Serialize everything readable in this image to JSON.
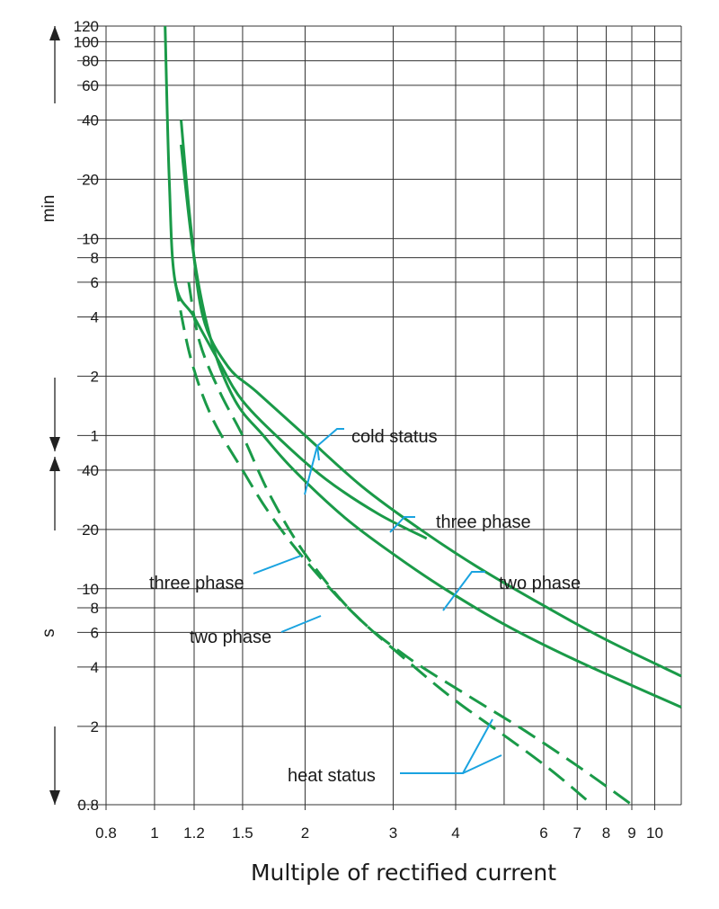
{
  "chart_data": {
    "type": "line",
    "title": "",
    "xlabel": "Multiple of rectified current",
    "x_scale": "log",
    "xlim": [
      0.8,
      11.3
    ],
    "x_ticks": [
      0.8,
      1,
      1.2,
      1.5,
      2,
      3,
      4,
      6,
      7,
      8,
      9,
      10
    ],
    "y_scale": "log",
    "y_unit_labels": [
      "min",
      "s"
    ],
    "y_ticks": [
      {
        "label": "120",
        "seconds": 7200
      },
      {
        "label": "100",
        "seconds": 6000
      },
      {
        "label": "80",
        "seconds": 4800
      },
      {
        "label": "60",
        "seconds": 3600
      },
      {
        "label": "40",
        "seconds": 2400
      },
      {
        "label": "20",
        "seconds": 1200
      },
      {
        "label": "10",
        "seconds": 600
      },
      {
        "label": "8",
        "seconds": 480
      },
      {
        "label": "6",
        "seconds": 360
      },
      {
        "label": "4",
        "seconds": 240
      },
      {
        "label": "2",
        "seconds": 120
      },
      {
        "label": "1",
        "seconds": 60
      },
      {
        "label": "40",
        "seconds": 40
      },
      {
        "label": "20",
        "seconds": 20
      },
      {
        "label": "10",
        "seconds": 10
      },
      {
        "label": "8",
        "seconds": 8
      },
      {
        "label": "6",
        "seconds": 6
      },
      {
        "label": "4",
        "seconds": 4
      },
      {
        "label": "2",
        "seconds": 2
      },
      {
        "label": "0.8",
        "seconds": 0.8
      }
    ],
    "ylim_seconds": [
      0.8,
      7200
    ],
    "grid": true,
    "line_color": "#1a9a48",
    "annotation_color": "#1aa3e0",
    "series": [
      {
        "name": "cold status three phase",
        "style": "solid",
        "x": [
          1.13,
          1.18,
          1.25,
          1.4,
          1.6,
          2.0,
          2.6,
          3.4,
          4.4,
          6.0,
          8.0,
          11.3
        ],
        "y": [
          2400,
          720,
          240,
          135,
          100,
          60,
          33,
          20,
          13,
          8.2,
          5.5,
          3.6
        ]
      },
      {
        "name": "cold status two phase",
        "style": "solid",
        "x": [
          1.13,
          1.2,
          1.3,
          1.45,
          1.65,
          1.9,
          2.4,
          3.0,
          3.8,
          5.0,
          7.0,
          11.3
        ],
        "y": [
          1800,
          480,
          180,
          90,
          60,
          40,
          23,
          15,
          10,
          6.6,
          4.3,
          2.5
        ]
      },
      {
        "name": "cold status",
        "style": "solid",
        "x": [
          1.05,
          1.07,
          1.1,
          1.2,
          1.35,
          1.5,
          1.8,
          2.2,
          2.8,
          3.5
        ],
        "y": [
          7200,
          1200,
          360,
          240,
          140,
          90,
          56,
          36,
          24,
          18
        ]
      },
      {
        "name": "heat status three phase",
        "style": "dashed",
        "x": [
          1.17,
          1.23,
          1.35,
          1.5,
          1.7,
          2.0,
          2.5,
          3.2,
          4.2,
          5.5,
          7.2,
          9.0
        ],
        "y": [
          360,
          180,
          100,
          60,
          30,
          15,
          7.5,
          4.5,
          2.9,
          1.9,
          1.2,
          0.8
        ]
      },
      {
        "name": "heat status two phase",
        "style": "dashed",
        "x": [
          1.1,
          1.18,
          1.3,
          1.5,
          1.7,
          2.0,
          2.5,
          3.2,
          4.0,
          5.0,
          6.2,
          7.5
        ],
        "y": [
          360,
          150,
          75,
          40,
          24,
          14,
          7.5,
          4.3,
          2.7,
          1.8,
          1.2,
          0.8
        ]
      }
    ],
    "annotations": [
      {
        "text": "cold status"
      },
      {
        "text": "three phase"
      },
      {
        "text": "two phase"
      },
      {
        "text": "three phase"
      },
      {
        "text": "two phase"
      },
      {
        "text": "heat status"
      }
    ]
  }
}
